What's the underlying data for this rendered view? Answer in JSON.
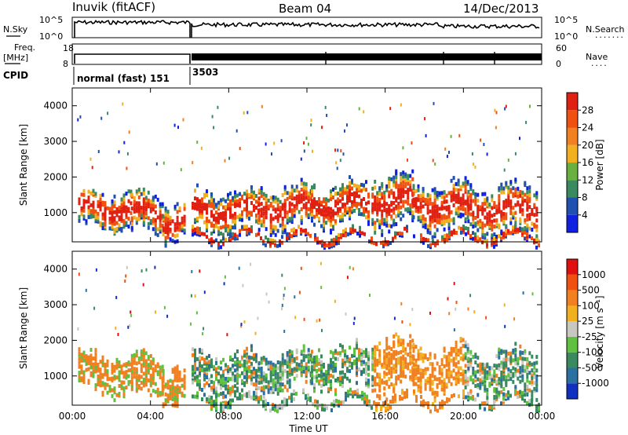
{
  "header": {
    "station": "Inuvik (fitACF)",
    "beam": "Beam 04",
    "date": "14/Dec/2013"
  },
  "top_panels": {
    "left_top": "N.Sky",
    "left_mid_a": "Freq.",
    "left_mid_b": "[MHz]",
    "left_cpid": "CPID",
    "right_top": "N.Search",
    "right_top_dots": ".......",
    "right_mid": "Nave",
    "right_mid_dots": "....",
    "noise_ticks_left": [
      "10^5",
      "10^0"
    ],
    "noise_ticks_right": [
      "10^5",
      "10^0"
    ],
    "freq_ticks_left": [
      "18",
      "8"
    ],
    "nave_ticks_right": [
      "60",
      "0"
    ],
    "cpid_labels": [
      "normal (fast) 151",
      "3503"
    ]
  },
  "x_axis": {
    "label": "Time UT",
    "ticks": [
      "00:00",
      "04:00",
      "08:00",
      "12:00",
      "16:00",
      "20:00",
      "00:00"
    ]
  },
  "chart_data": [
    {
      "type": "heatmap",
      "name": "power",
      "ylabel": "Slant Range [km]",
      "yticks": [
        "1000",
        "2000",
        "3000",
        "4000"
      ],
      "ylim": [
        180,
        4500
      ],
      "xlim": [
        0,
        24
      ],
      "colorbar": {
        "label": "Power [dB]",
        "ticks": [
          "4",
          "8",
          "12",
          "16",
          "20",
          "24",
          "28"
        ],
        "colors": [
          "#1020e0",
          "#2050b0",
          "#3a8a60",
          "#6ab040",
          "#f0b020",
          "#f08020",
          "#f05010",
          "#e02010"
        ]
      }
    },
    {
      "type": "heatmap",
      "name": "velocity",
      "ylabel": "Slant Range [km]",
      "yticks": [
        "1000",
        "2000",
        "3000",
        "4000"
      ],
      "ylim": [
        180,
        4500
      ],
      "xlim": [
        0,
        24
      ],
      "colorbar": {
        "label": "Velocity [m s⁻¹]",
        "ticks": [
          "1000",
          "500",
          "100",
          "25",
          "-25",
          "-100",
          "-500",
          "-1000"
        ],
        "colors": [
          "#1030c0",
          "#2a70a0",
          "#3a8a60",
          "#60c040",
          "#c8c8c0",
          "#f0b020",
          "#f08020",
          "#f05010",
          "#e01010"
        ]
      }
    }
  ]
}
